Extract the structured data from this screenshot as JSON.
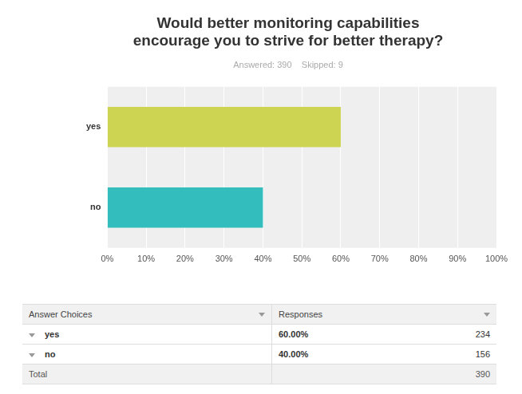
{
  "chart_data": {
    "type": "bar",
    "orientation": "horizontal",
    "title": [
      "Would better monitoring capabilities",
      "encourage you to strive for better therapy?"
    ],
    "subtitle": "Answered: 390    Skipped: 9",
    "categories": [
      "yes",
      "no"
    ],
    "values": [
      60,
      40
    ],
    "colors": [
      "#cdd452",
      "#34bdbd"
    ],
    "xlim": [
      0,
      100
    ],
    "xticks": [
      {
        "value": 0,
        "label": "0%"
      },
      {
        "value": 10,
        "label": "10%"
      },
      {
        "value": 20,
        "label": "20%"
      },
      {
        "value": 30,
        "label": "30%"
      },
      {
        "value": 40,
        "label": "40%"
      },
      {
        "value": 50,
        "label": "50%"
      },
      {
        "value": 60,
        "label": "60%"
      },
      {
        "value": 70,
        "label": "70%"
      },
      {
        "value": 80,
        "label": "80%"
      },
      {
        "value": 90,
        "label": "90%"
      },
      {
        "value": 100,
        "label": "100%"
      }
    ],
    "grid": true
  },
  "table": {
    "header": [
      "Answer Choices",
      "Responses"
    ],
    "rows": [
      [
        "yes",
        "60.00%",
        234
      ],
      [
        "no",
        "40.00%",
        156
      ]
    ],
    "total": [
      "Total",
      390
    ]
  }
}
